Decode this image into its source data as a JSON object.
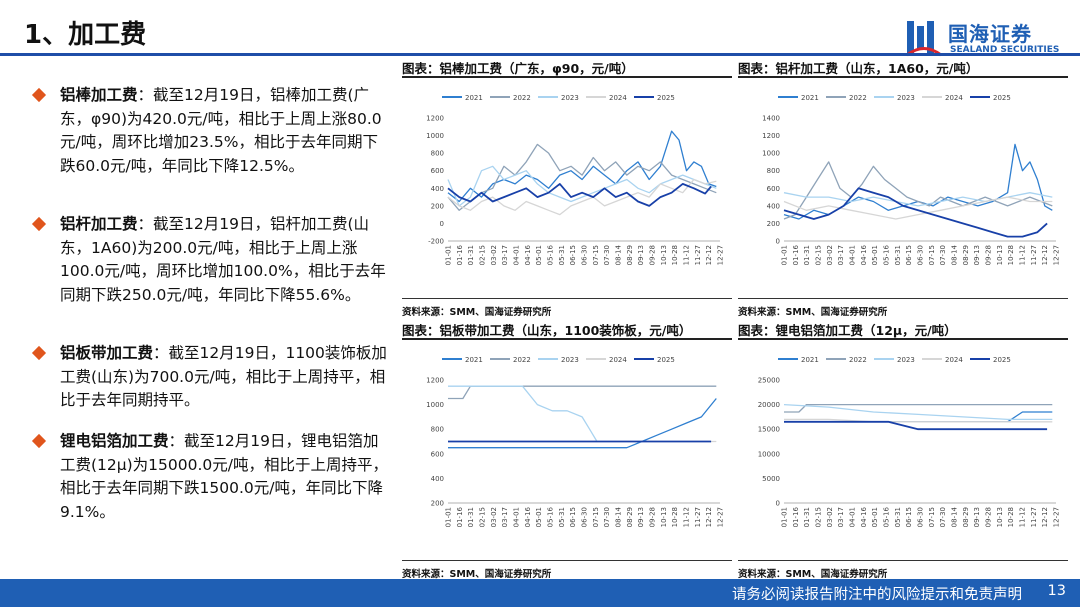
{
  "header": {
    "title": "1、加工费",
    "logo_cn": "国海证券",
    "logo_en": "SEALAND SECURITIES",
    "brand_color": "#1f5fb4"
  },
  "bullets": [
    {
      "label": "铝棒加工费",
      "text": "：截至12月19日，铝棒加工费(广东，φ90)为420.0元/吨，相比于上周上涨80.0元/吨，周环比增加23.5%，相比于去年同期下跌60.0元/吨，年同比下降12.5%。"
    },
    {
      "label": "铝杆加工费",
      "text": "：截至12月19日，铝杆加工费(山东，1A60)为200.0元/吨，相比于上周上涨100.0元/吨，周环比增加100.0%，相比于去年同期下跌250.0元/吨，年同比下降55.6%。"
    },
    {
      "label": "铝板带加工费",
      "text": "：截至12月19日，1100装饰板加工费(山东)为700.0元/吨，相比于上周持平，相比于去年同期持平。"
    },
    {
      "label": "锂电铝箔加工费",
      "text": "：截至12月19日，锂电铝箔加工费(12μ)为15000.0元/吨，相比于上周持平，相比于去年同期下跌1500.0元/吨，年同比下降9.1%。"
    }
  ],
  "footer": {
    "disclaimer": "请务必阅读报告附注中的风险提示和免责声明",
    "page": "13"
  },
  "colors": {
    "2021": "#2f7fd0",
    "2022": "#8fa3b8",
    "2023": "#a9d3f0",
    "2024": "#d6d6d6",
    "2025": "#1840a8"
  },
  "x_ticks": [
    "01-01",
    "01-16",
    "01-31",
    "02-15",
    "03-02",
    "03-17",
    "04-01",
    "04-16",
    "05-01",
    "05-16",
    "05-31",
    "06-15",
    "06-30",
    "07-15",
    "07-30",
    "08-14",
    "08-29",
    "09-13",
    "09-28",
    "10-13",
    "10-28",
    "11-12",
    "11-27",
    "12-12",
    "12-27"
  ],
  "chart_data": [
    {
      "type": "line",
      "title": "图表：铝棒加工费（广东，φ90，元/吨）",
      "source": "资料来源：SMM、国海证券研究所",
      "ylim": [
        -200,
        1200
      ],
      "y_ticks": [
        -200,
        0,
        200,
        400,
        600,
        800,
        1000,
        1200
      ],
      "series": [
        {
          "name": "2021",
          "x": [
            0,
            15,
            30,
            45,
            60,
            75,
            90,
            105,
            120,
            135,
            150,
            165,
            180,
            195,
            210,
            225,
            240,
            255,
            270,
            285,
            300,
            310,
            320,
            330,
            340,
            350,
            360
          ],
          "values": [
            350,
            250,
            400,
            300,
            450,
            500,
            450,
            550,
            500,
            400,
            550,
            600,
            500,
            650,
            550,
            450,
            600,
            700,
            500,
            650,
            1050,
            950,
            600,
            700,
            650,
            450,
            420
          ]
        },
        {
          "name": "2022",
          "x": [
            0,
            15,
            30,
            45,
            60,
            75,
            90,
            105,
            120,
            135,
            150,
            165,
            180,
            195,
            210,
            225,
            240,
            255,
            270,
            285,
            300,
            315,
            330,
            345,
            360
          ],
          "values": [
            300,
            150,
            250,
            350,
            400,
            650,
            550,
            700,
            900,
            800,
            600,
            650,
            550,
            750,
            600,
            700,
            550,
            650,
            600,
            700,
            550,
            500,
            450,
            400,
            350
          ]
        },
        {
          "name": "2023",
          "x": [
            0,
            15,
            30,
            45,
            60,
            75,
            90,
            105,
            120,
            135,
            150,
            165,
            180,
            195,
            210,
            225,
            240,
            255,
            270,
            285,
            300,
            315,
            330,
            345,
            360
          ],
          "values": [
            500,
            200,
            300,
            600,
            650,
            500,
            550,
            600,
            450,
            350,
            300,
            250,
            300,
            350,
            400,
            450,
            500,
            400,
            350,
            450,
            500,
            550,
            500,
            450,
            400
          ]
        },
        {
          "name": "2024",
          "x": [
            0,
            15,
            30,
            45,
            60,
            75,
            90,
            105,
            120,
            135,
            150,
            165,
            180,
            195,
            210,
            225,
            240,
            255,
            270,
            285,
            300,
            315,
            330,
            345,
            360
          ],
          "values": [
            300,
            200,
            150,
            250,
            300,
            200,
            150,
            250,
            200,
            150,
            100,
            200,
            250,
            300,
            200,
            250,
            300,
            350,
            300,
            450,
            400,
            350,
            500,
            450,
            480
          ]
        },
        {
          "name": "2025",
          "x": [
            0,
            15,
            30,
            45,
            60,
            75,
            90,
            105,
            120,
            135,
            150,
            165,
            180,
            195,
            210,
            225,
            240,
            255,
            270,
            285,
            300,
            315,
            330,
            345,
            353
          ],
          "values": [
            400,
            300,
            250,
            350,
            250,
            300,
            350,
            400,
            300,
            350,
            450,
            300,
            350,
            300,
            400,
            300,
            350,
            250,
            200,
            300,
            350,
            450,
            400,
            340,
            420
          ]
        }
      ]
    },
    {
      "type": "line",
      "title": "图表：铝杆加工费（山东，1A60，元/吨）",
      "source": "资料来源：SMM、国海证券研究所",
      "ylim": [
        0,
        1400
      ],
      "y_ticks": [
        0,
        200,
        400,
        600,
        800,
        1000,
        1200,
        1400
      ],
      "series": [
        {
          "name": "2021",
          "x": [
            0,
            20,
            40,
            60,
            80,
            100,
            120,
            140,
            160,
            180,
            200,
            220,
            240,
            260,
            280,
            300,
            310,
            320,
            330,
            340,
            350,
            360
          ],
          "values": [
            300,
            250,
            350,
            300,
            400,
            500,
            450,
            350,
            400,
            450,
            400,
            500,
            450,
            400,
            450,
            550,
            1100,
            800,
            900,
            700,
            400,
            350
          ]
        },
        {
          "name": "2022",
          "x": [
            0,
            15,
            30,
            45,
            60,
            75,
            90,
            105,
            120,
            135,
            150,
            165,
            180,
            195,
            210,
            225,
            240,
            255,
            270,
            285,
            300,
            315,
            330,
            345,
            360
          ],
          "values": [
            250,
            300,
            500,
            700,
            900,
            600,
            500,
            650,
            850,
            700,
            600,
            500,
            450,
            400,
            500,
            450,
            400,
            450,
            500,
            450,
            400,
            450,
            500,
            450,
            400
          ]
        },
        {
          "name": "2023",
          "x": [
            0,
            30,
            60,
            90,
            120,
            150,
            180,
            210,
            240,
            270,
            300,
            330,
            360
          ],
          "values": [
            550,
            500,
            500,
            450,
            500,
            450,
            400,
            450,
            500,
            450,
            500,
            550,
            500
          ]
        },
        {
          "name": "2024",
          "x": [
            0,
            30,
            60,
            90,
            120,
            150,
            180,
            210,
            240,
            270,
            300,
            330,
            360
          ],
          "values": [
            450,
            350,
            400,
            350,
            300,
            250,
            300,
            350,
            400,
            450,
            500,
            450,
            450
          ]
        },
        {
          "name": "2025",
          "x": [
            0,
            20,
            40,
            60,
            80,
            100,
            120,
            140,
            160,
            180,
            200,
            220,
            240,
            260,
            280,
            300,
            320,
            340,
            353
          ],
          "values": [
            350,
            300,
            250,
            300,
            400,
            600,
            550,
            500,
            400,
            350,
            300,
            250,
            200,
            150,
            100,
            50,
            50,
            100,
            200
          ]
        }
      ]
    },
    {
      "type": "line",
      "title": "图表：铝板带加工费（山东，1100装饰板，元/吨）",
      "source": "资料来源：SMM、国海证券研究所",
      "ylim": [
        200,
        1200
      ],
      "y_ticks": [
        200,
        400,
        600,
        800,
        1000,
        1200
      ],
      "series": [
        {
          "name": "2021",
          "x": [
            0,
            60,
            120,
            180,
            240,
            260,
            280,
            300,
            320,
            340,
            360
          ],
          "values": [
            650,
            650,
            650,
            650,
            650,
            700,
            750,
            800,
            850,
            900,
            1050
          ]
        },
        {
          "name": "2022",
          "x": [
            0,
            20,
            30,
            360
          ],
          "values": [
            1050,
            1050,
            1150,
            1150
          ]
        },
        {
          "name": "2023",
          "x": [
            0,
            60,
            100,
            120,
            140,
            160,
            180,
            190,
            200
          ],
          "values": [
            1150,
            1150,
            1150,
            1000,
            950,
            950,
            900,
            800,
            700
          ]
        },
        {
          "name": "2024",
          "x": [
            0,
            360
          ],
          "values": [
            700,
            700
          ]
        },
        {
          "name": "2025",
          "x": [
            0,
            353
          ],
          "values": [
            700,
            700
          ]
        }
      ]
    },
    {
      "type": "line",
      "title": "图表：锂电铝箔加工费（12μ，元/吨）",
      "source": "资料来源：SMM、国海证券研究所",
      "ylim": [
        0,
        25000
      ],
      "y_ticks": [
        0,
        5000,
        10000,
        15000,
        20000,
        25000
      ],
      "series": [
        {
          "name": "2021",
          "x": [
            0,
            300,
            320,
            360
          ],
          "values": [
            16500,
            16500,
            18500,
            18500
          ]
        },
        {
          "name": "2022",
          "x": [
            0,
            20,
            30,
            360
          ],
          "values": [
            18500,
            18500,
            20000,
            20000
          ]
        },
        {
          "name": "2023",
          "x": [
            0,
            60,
            120,
            180,
            240,
            300,
            360
          ],
          "values": [
            20000,
            19500,
            18500,
            18000,
            17500,
            17000,
            17000
          ]
        },
        {
          "name": "2024",
          "x": [
            0,
            60,
            120,
            180,
            240,
            300,
            360
          ],
          "values": [
            17000,
            17000,
            16500,
            16500,
            16500,
            16500,
            16500
          ]
        },
        {
          "name": "2025",
          "x": [
            0,
            100,
            140,
            180,
            240,
            300,
            353
          ],
          "values": [
            16500,
            16500,
            16500,
            15000,
            15000,
            15000,
            15000
          ]
        }
      ]
    }
  ]
}
